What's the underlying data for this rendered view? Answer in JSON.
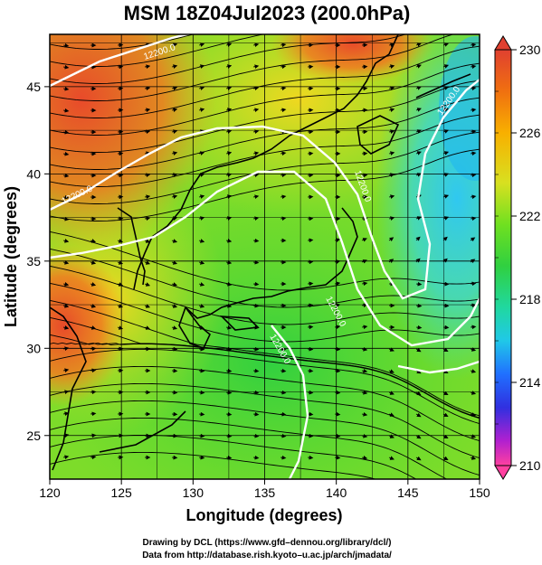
{
  "title": "MSM 18Z04Jul2023 (200.0hPa)",
  "x_axis": {
    "label": "Longitude (degrees)",
    "range": [
      120,
      150
    ],
    "ticks": [
      "120",
      "125",
      "130",
      "135",
      "140",
      "145",
      "150"
    ]
  },
  "y_axis": {
    "label": "Latitude  (degrees)",
    "range": [
      22.5,
      48
    ],
    "ticks": [
      "25",
      "30",
      "35",
      "40",
      "45"
    ]
  },
  "colorbar": {
    "range": [
      210,
      230
    ],
    "tick_labels": [
      "230",
      "226",
      "222",
      "218",
      "214",
      "210"
    ],
    "colors": [
      "#ff3fa0",
      "#c51fc8",
      "#3030e0",
      "#2070ff",
      "#20c8e8",
      "#20d890",
      "#30d030",
      "#80e020",
      "#f0e020",
      "#f8a000",
      "#f06010",
      "#e04030"
    ]
  },
  "contours": [
    {
      "label": "12200.0"
    },
    {
      "label": "12200.0"
    },
    {
      "label": "12200.0"
    },
    {
      "label": "12200.0"
    },
    {
      "label": "12200.0"
    },
    {
      "label": "12200.0"
    }
  ],
  "credits": {
    "line1": "Drawing by DCL (https://www.gfd–dennou.org/library/dcl/)",
    "line2": "Data from http://database.rish.kyoto–u.ac.jp/arch/jmadata/"
  }
}
